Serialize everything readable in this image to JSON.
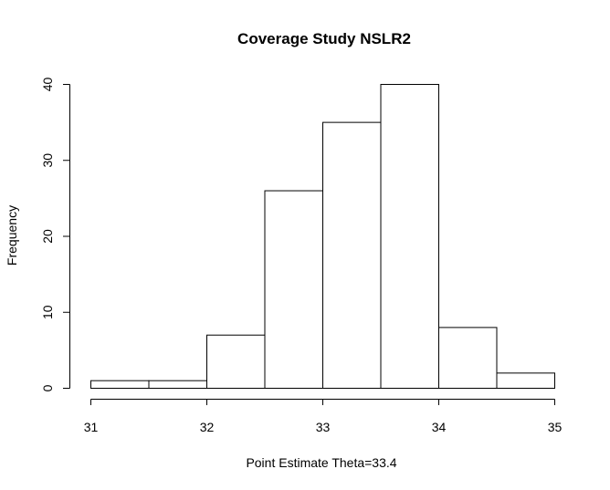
{
  "chart_data": {
    "type": "bar",
    "title": "Coverage Study NSLR2",
    "xlabel": "Point Estimate Theta=33.4",
    "ylabel": "Frequency",
    "bins": [
      {
        "start": 31.0,
        "end": 31.5,
        "value": 1
      },
      {
        "start": 31.5,
        "end": 32.0,
        "value": 1
      },
      {
        "start": 32.0,
        "end": 32.5,
        "value": 7
      },
      {
        "start": 32.5,
        "end": 33.0,
        "value": 26
      },
      {
        "start": 33.0,
        "end": 33.5,
        "value": 35
      },
      {
        "start": 33.5,
        "end": 34.0,
        "value": 40
      },
      {
        "start": 34.0,
        "end": 34.5,
        "value": 8
      },
      {
        "start": 34.5,
        "end": 35.0,
        "value": 2
      }
    ],
    "xlim": [
      31,
      35
    ],
    "ylim": [
      0,
      40
    ],
    "x_ticks": [
      "31",
      "32",
      "33",
      "34",
      "35"
    ],
    "y_ticks": [
      "0",
      "10",
      "20",
      "30",
      "40"
    ],
    "grid": false,
    "colors": {
      "bar_fill": "#ffffff",
      "bar_stroke": "#000000"
    }
  }
}
